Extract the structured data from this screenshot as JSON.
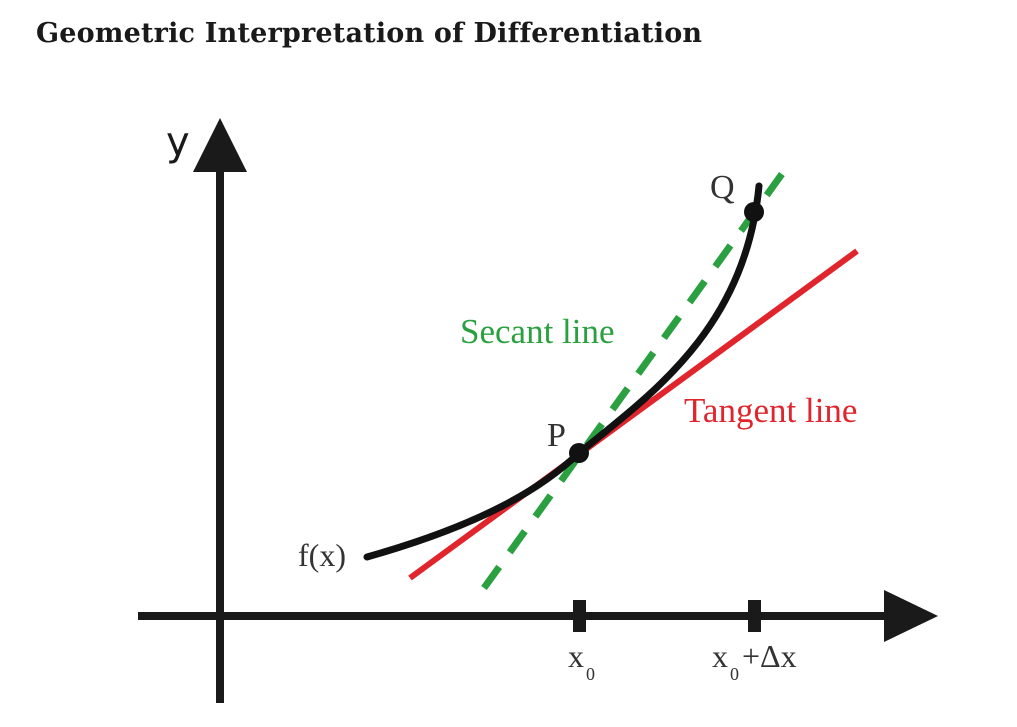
{
  "title": "Geometric Interpretation of Differentiation",
  "axes": {
    "y_label": "y"
  },
  "curve": {
    "label": "f(x)"
  },
  "points": {
    "p_label": "P",
    "q_label": "Q"
  },
  "lines": {
    "secant_label": "Secant line",
    "tangent_label": "Tangent line"
  },
  "ticks": {
    "x0_main": "x",
    "x0_sub": "0",
    "x0dx_main": "x",
    "x0dx_sub": "0",
    "x0dx_suffix": "+Δx"
  },
  "colors": {
    "axis": "#1a1a1a",
    "curve": "#111111",
    "secant": "#2aa040",
    "tangent": "#e0252d",
    "text": "#333333"
  }
}
